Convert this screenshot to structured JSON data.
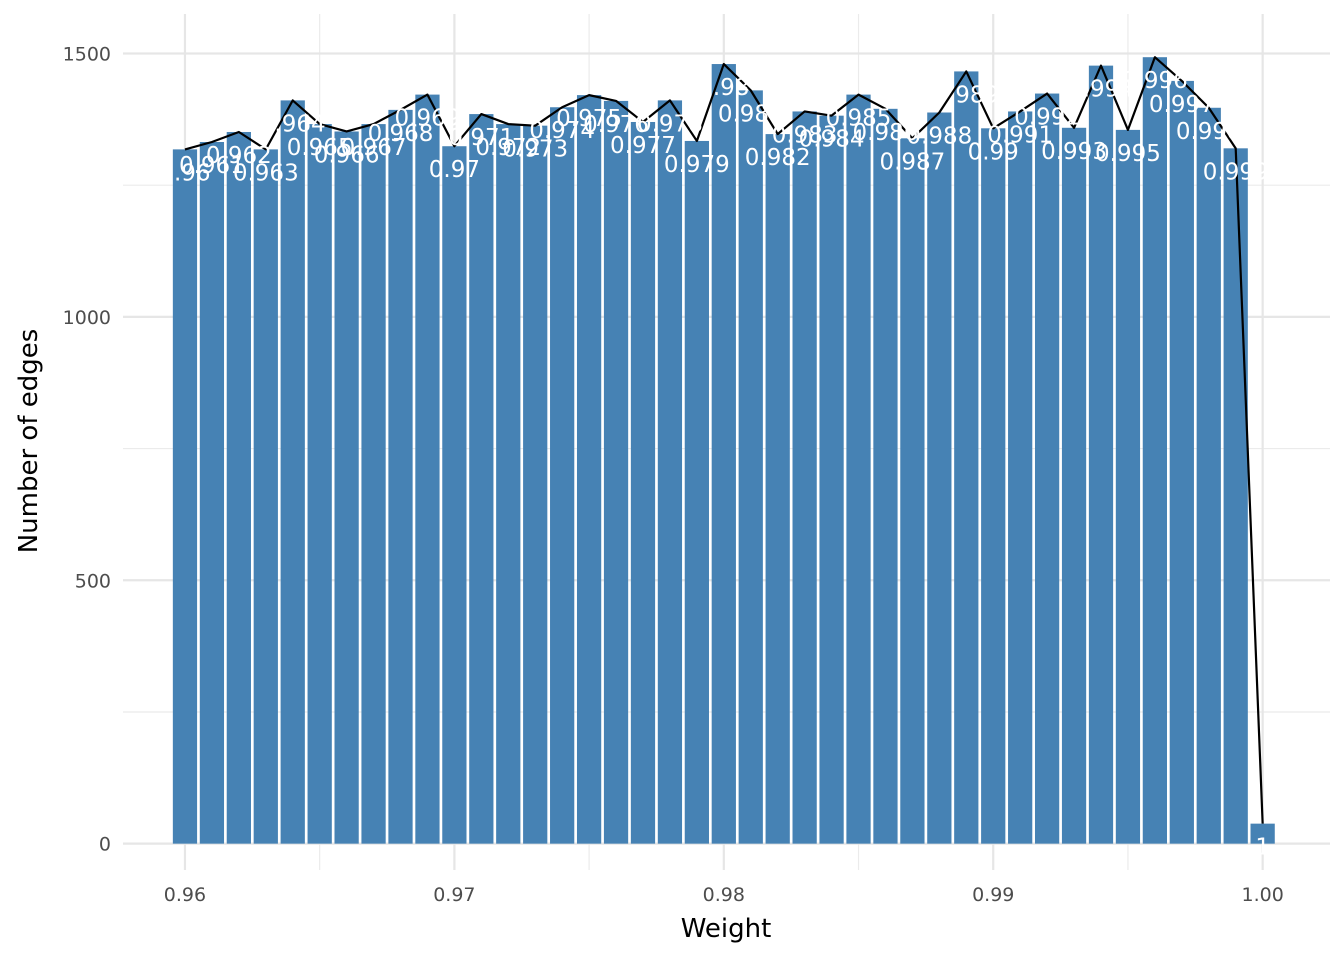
{
  "chart_data": {
    "type": "bar",
    "xlabel": "Weight",
    "ylabel": "Number of edges",
    "xlim": [
      0.9577,
      1.0025
    ],
    "ylim": [
      -50,
      1575
    ],
    "x_ticks": [
      "0.96",
      "0.97",
      "0.98",
      "0.99",
      "1.00"
    ],
    "x_tick_values": [
      0.96,
      0.97,
      0.98,
      0.99,
      1.0
    ],
    "y_ticks": [
      "0",
      "500",
      "1000",
      "1500"
    ],
    "y_tick_values": [
      0,
      500,
      1000,
      1500
    ],
    "bar_color": "#4682B4",
    "line_color": "#000000",
    "grid": true,
    "x": [
      0.96,
      0.961,
      0.962,
      0.963,
      0.964,
      0.965,
      0.966,
      0.967,
      0.968,
      0.969,
      0.97,
      0.971,
      0.972,
      0.973,
      0.974,
      0.975,
      0.976,
      0.977,
      0.978,
      0.979,
      0.98,
      0.981,
      0.982,
      0.983,
      0.984,
      0.985,
      0.986,
      0.987,
      0.988,
      0.989,
      0.99,
      0.991,
      0.992,
      0.993,
      0.994,
      0.995,
      0.996,
      0.997,
      0.998,
      0.999,
      1.0
    ],
    "values": [
      1318,
      1332,
      1351,
      1318,
      1411,
      1366,
      1352,
      1366,
      1393,
      1422,
      1324,
      1385,
      1366,
      1363,
      1398,
      1421,
      1410,
      1370,
      1411,
      1334,
      1480,
      1430,
      1347,
      1390,
      1382,
      1422,
      1395,
      1339,
      1388,
      1466,
      1358,
      1390,
      1424,
      1359,
      1477,
      1355,
      1493,
      1448,
      1397,
      1320,
      38
    ],
    "labels": [
      "0.96",
      "0.961",
      "0.962",
      "0.963",
      "0.964",
      "0.965",
      "0.966",
      "0.967",
      "0.968",
      "0.969",
      "0.97",
      "0.971",
      "0.972",
      "0.973",
      "0.974",
      "0.975",
      "0.976",
      "0.977",
      "0.978",
      "0.979",
      "0.98",
      "0.981",
      "0.982",
      "0.983",
      "0.984",
      "0.985",
      "0.986",
      "0.987",
      "0.988",
      "0.989",
      "0.99",
      "0.991",
      "0.992",
      "0.993",
      "0.994",
      "0.995",
      "0.996",
      "0.997",
      "0.998",
      "0.999",
      "1"
    ]
  }
}
